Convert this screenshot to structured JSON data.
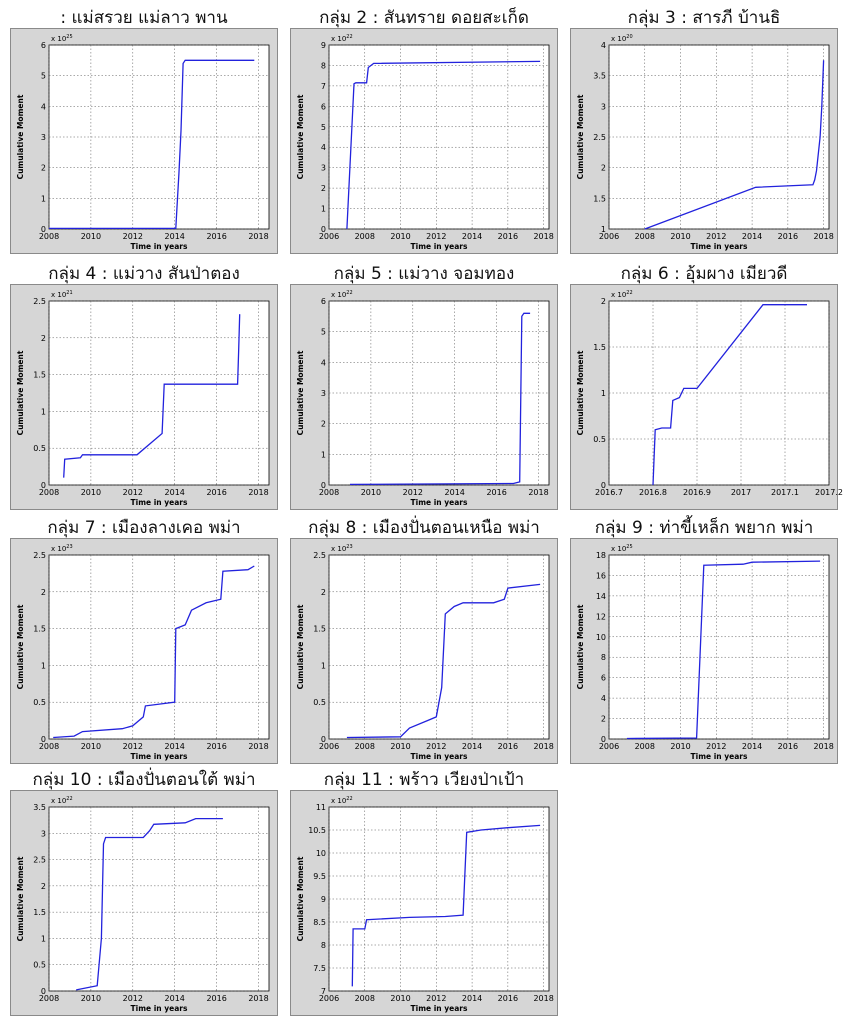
{
  "chart_data": [
    {
      "type": "line",
      "title": ": แม่สรวย แม่ลาว พาน",
      "xlabel": "Time in years",
      "ylabel": "Cumulative Moment",
      "exponent": {
        "base": "x 10",
        "power": "25"
      },
      "xlim": [
        2008,
        2018.5
      ],
      "ylim": [
        0,
        6
      ],
      "xticks": [
        "2008",
        "2010",
        "2012",
        "2014",
        "2016",
        "2018"
      ],
      "yticks": [
        "0",
        "1",
        "2",
        "3",
        "4",
        "5",
        "6"
      ],
      "series": [
        {
          "color": "#2222dd",
          "x": [
            2008,
            2014.05,
            2014.1,
            2014.2,
            2014.3,
            2014.4,
            2014.5,
            2017.8
          ],
          "y": [
            0.02,
            0.02,
            0.6,
            1.8,
            3.2,
            5.4,
            5.5,
            5.5
          ]
        }
      ]
    },
    {
      "type": "line",
      "title": "กลุ่ม 2 : สันทราย ดอยสะเก็ด",
      "xlabel": "Time in years",
      "ylabel": "Cumulative Moment",
      "exponent": {
        "base": "x 10",
        "power": "22"
      },
      "xlim": [
        2006,
        2018.3
      ],
      "ylim": [
        0,
        9
      ],
      "xticks": [
        "2006",
        "2008",
        "2010",
        "2012",
        "2014",
        "2016",
        "2018"
      ],
      "yticks": [
        "0",
        "1",
        "2",
        "3",
        "4",
        "5",
        "6",
        "7",
        "8",
        "9"
      ],
      "series": [
        {
          "color": "#2222dd",
          "x": [
            2007.0,
            2007.4,
            2007.5,
            2008.1,
            2008.2,
            2008.5,
            2017.8
          ],
          "y": [
            0,
            7.1,
            7.15,
            7.15,
            7.9,
            8.1,
            8.2
          ]
        }
      ]
    },
    {
      "type": "line",
      "title": "กลุ่ม 3 : สารภี บ้านธิ",
      "xlabel": "Time in years",
      "ylabel": "Cumulative Moment",
      "exponent": {
        "base": "x 10",
        "power": "20"
      },
      "xlim": [
        2006,
        2018.3
      ],
      "ylim": [
        1,
        4
      ],
      "xticks": [
        "2006",
        "2008",
        "2010",
        "2012",
        "2014",
        "2016",
        "2018"
      ],
      "yticks": [
        "1",
        "1.5",
        "2",
        "2.5",
        "3",
        "3.5",
        "4"
      ],
      "series": [
        {
          "color": "#2222dd",
          "x": [
            2008.0,
            2014.2,
            2017.4,
            2017.5,
            2017.6,
            2017.8,
            2017.9,
            2018.0
          ],
          "y": [
            1.0,
            1.68,
            1.72,
            1.8,
            1.95,
            2.5,
            3.0,
            3.75
          ]
        }
      ]
    },
    {
      "type": "line",
      "title": "กลุ่ม 4 : แม่วาง สันป่าตอง",
      "xlabel": "Time in years",
      "ylabel": "Cumulative Moment",
      "exponent": {
        "base": "x 10",
        "power": "21"
      },
      "xlim": [
        2008,
        2018.5
      ],
      "ylim": [
        0,
        2.5
      ],
      "xticks": [
        "2008",
        "2010",
        "2012",
        "2014",
        "2016",
        "2018"
      ],
      "yticks": [
        "0",
        "0.5",
        "1",
        "1.5",
        "2",
        "2.5"
      ],
      "series": [
        {
          "color": "#2222dd",
          "x": [
            2008.7,
            2008.75,
            2009.5,
            2009.6,
            2012.2,
            2013.4,
            2013.5,
            2017.0,
            2017.05,
            2017.1
          ],
          "y": [
            0.1,
            0.35,
            0.37,
            0.41,
            0.41,
            0.7,
            1.37,
            1.37,
            1.8,
            2.32
          ]
        }
      ]
    },
    {
      "type": "line",
      "title": "กลุ่ม 5 : แม่วาง จอมทอง",
      "xlabel": "Time in years",
      "ylabel": "Cumulative Moment",
      "exponent": {
        "base": "x 10",
        "power": "22"
      },
      "xlim": [
        2008,
        2018.5
      ],
      "ylim": [
        0,
        6
      ],
      "xticks": [
        "2008",
        "2010",
        "2012",
        "2014",
        "2016",
        "2018"
      ],
      "yticks": [
        "0",
        "1",
        "2",
        "3",
        "4",
        "5",
        "6"
      ],
      "series": [
        {
          "color": "#2222dd",
          "x": [
            2009,
            2016.8,
            2017.1,
            2017.2,
            2017.3,
            2017.6
          ],
          "y": [
            0.02,
            0.05,
            0.1,
            5.5,
            5.6,
            5.6
          ]
        }
      ]
    },
    {
      "type": "line",
      "title": "กลุ่ม 6 : อุ้มผาง เมียวดี",
      "xlabel": "",
      "ylabel": "Cumulative Moment",
      "exponent": {
        "base": "x 10",
        "power": "22"
      },
      "xlim": [
        2016.7,
        2017.2
      ],
      "ylim": [
        0,
        2
      ],
      "xticks": [
        "2016.7",
        "2016.8",
        "2016.9",
        "2017",
        "2017.1",
        "2017.2"
      ],
      "yticks": [
        "0",
        "0.5",
        "1",
        "1.5",
        "2"
      ],
      "series": [
        {
          "color": "#2222dd",
          "x": [
            2016.8,
            2016.805,
            2016.82,
            2016.84,
            2016.845,
            2016.86,
            2016.87,
            2016.9,
            2017.05,
            2017.15
          ],
          "y": [
            0,
            0.6,
            0.62,
            0.62,
            0.92,
            0.95,
            1.05,
            1.05,
            1.96,
            1.96
          ]
        }
      ]
    },
    {
      "type": "line",
      "title": "กลุ่ม 7 : เมืองลางเคอ พม่า",
      "xlabel": "Time in years",
      "ylabel": "Cumulative Moment",
      "exponent": {
        "base": "x 10",
        "power": "23"
      },
      "xlim": [
        2008,
        2018.5
      ],
      "ylim": [
        0,
        2.5
      ],
      "xticks": [
        "2008",
        "2010",
        "2012",
        "2014",
        "2016",
        "2018"
      ],
      "yticks": [
        "0",
        "0.5",
        "1",
        "1.5",
        "2",
        "2.5"
      ],
      "series": [
        {
          "color": "#2222dd",
          "x": [
            2008.2,
            2009.2,
            2009.6,
            2011.5,
            2012.0,
            2012.5,
            2012.6,
            2014.0,
            2014.05,
            2014.5,
            2014.8,
            2015.5,
            2016.2,
            2016.3,
            2017.5,
            2017.8
          ],
          "y": [
            0.02,
            0.04,
            0.1,
            0.14,
            0.18,
            0.3,
            0.45,
            0.5,
            1.5,
            1.55,
            1.75,
            1.85,
            1.9,
            2.28,
            2.3,
            2.35
          ]
        }
      ]
    },
    {
      "type": "line",
      "title": "กลุ่ม 8 : เมืองปั่นตอนเหนือ พม่า",
      "xlabel": "Time in years",
      "ylabel": "Cumulative Moment",
      "exponent": {
        "base": "x 10",
        "power": "23"
      },
      "xlim": [
        2006,
        2018.3
      ],
      "ylim": [
        0,
        2.5
      ],
      "xticks": [
        "2006",
        "2008",
        "2010",
        "2012",
        "2014",
        "2016",
        "2018"
      ],
      "yticks": [
        "0",
        "0.5",
        "1",
        "1.5",
        "2",
        "2.5"
      ],
      "series": [
        {
          "color": "#2222dd",
          "x": [
            2007.0,
            2010.0,
            2010.5,
            2011.5,
            2012.0,
            2012.3,
            2012.5,
            2013.0,
            2013.5,
            2015.2,
            2015.8,
            2016.0,
            2017.8
          ],
          "y": [
            0.02,
            0.03,
            0.15,
            0.25,
            0.3,
            0.7,
            1.7,
            1.8,
            1.85,
            1.85,
            1.9,
            2.05,
            2.1
          ]
        }
      ]
    },
    {
      "type": "line",
      "title": "กลุ่ม 9 : ท่าขี้เหล็ก พยาก พม่า",
      "xlabel": "Time in years",
      "ylabel": "Cumulative Moment",
      "exponent": {
        "base": "x 10",
        "power": "25"
      },
      "xlim": [
        2006,
        2018.3
      ],
      "ylim": [
        0,
        18
      ],
      "xticks": [
        "2006",
        "2008",
        "2010",
        "2012",
        "2014",
        "2016",
        "2018"
      ],
      "yticks": [
        "0",
        "2",
        "4",
        "6",
        "8",
        "10",
        "12",
        "14",
        "16",
        "18"
      ],
      "series": [
        {
          "color": "#2222dd",
          "x": [
            2007.0,
            2010.9,
            2011.3,
            2013.5,
            2014.0,
            2017.8
          ],
          "y": [
            0.05,
            0.1,
            17.0,
            17.1,
            17.3,
            17.4
          ]
        }
      ]
    },
    {
      "type": "line",
      "title": "กลุ่ม 10 : เมืองปั่นตอนใต้ พม่า",
      "xlabel": "Time in years",
      "ylabel": "Cumulative Moment",
      "exponent": {
        "base": "x 10",
        "power": "22"
      },
      "xlim": [
        2008,
        2018.5
      ],
      "ylim": [
        0,
        3.5
      ],
      "xticks": [
        "2008",
        "2010",
        "2012",
        "2014",
        "2016",
        "2018"
      ],
      "yticks": [
        "0",
        "0.5",
        "1",
        "1.5",
        "2",
        "2.5",
        "3",
        "3.5"
      ],
      "series": [
        {
          "color": "#2222dd",
          "x": [
            2009.3,
            2010.3,
            2010.5,
            2010.6,
            2010.7,
            2012.5,
            2012.8,
            2013.0,
            2014.5,
            2015.0,
            2016.3
          ],
          "y": [
            0.02,
            0.1,
            1.0,
            2.8,
            2.92,
            2.92,
            3.05,
            3.17,
            3.2,
            3.28,
            3.28
          ]
        }
      ]
    },
    {
      "type": "line",
      "title": "กลุ่ม 11 : พร้าว เวียงป่าเป้า",
      "xlabel": "Time in years",
      "ylabel": "Cumulative Moment",
      "exponent": {
        "base": "x 10",
        "power": "22"
      },
      "xlim": [
        2006,
        2018.3
      ],
      "ylim": [
        7,
        11
      ],
      "xticks": [
        "2006",
        "2008",
        "2010",
        "2012",
        "2014",
        "2016",
        "2018"
      ],
      "yticks": [
        "7",
        "7.5",
        "8",
        "8.5",
        "9",
        "9.5",
        "10",
        "10.5",
        "11"
      ],
      "series": [
        {
          "color": "#2222dd",
          "x": [
            2007.3,
            2007.35,
            2008.0,
            2008.1,
            2010.5,
            2012.5,
            2013.5,
            2013.7,
            2014.5,
            2016.0,
            2017.8
          ],
          "y": [
            7.1,
            8.35,
            8.35,
            8.55,
            8.6,
            8.62,
            8.65,
            10.45,
            10.5,
            10.55,
            10.6
          ]
        }
      ]
    }
  ]
}
